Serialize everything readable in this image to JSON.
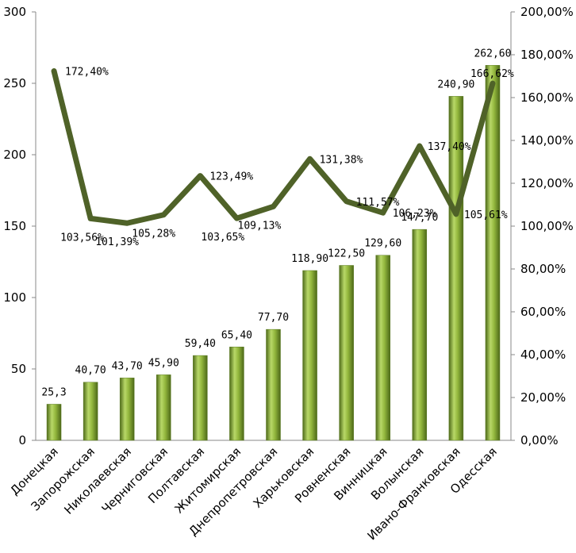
{
  "chart_data": {
    "type": "bar",
    "categories": [
      "Донецкая",
      "Запорожская",
      "Николаевская",
      "Черниговская",
      "Полтавская",
      "Житомирская",
      "Днепропетровская",
      "Харьковская",
      "Ровненская",
      "Винницкая",
      "Волынская",
      "Ивано-Франковская",
      "Одесская"
    ],
    "series": [
      {
        "type": "bar",
        "axis": "left",
        "values": [
          25.3,
          40.7,
          43.7,
          45.9,
          59.4,
          65.4,
          77.7,
          118.9,
          122.5,
          129.6,
          147.7,
          240.9,
          262.6
        ],
        "labels": [
          "25,3",
          "40,70",
          "43,70",
          "45,90",
          "59,40",
          "65,40",
          "77,70",
          "118,90",
          "122,50",
          "129,60",
          "147,70",
          "240,90",
          "262,60"
        ],
        "color": "#8fb339"
      },
      {
        "type": "line",
        "axis": "right",
        "values": [
          172.4,
          103.56,
          101.39,
          105.28,
          123.49,
          103.65,
          109.13,
          131.38,
          111.57,
          106.23,
          137.4,
          105.61,
          166.62
        ],
        "labels": [
          "172,40%",
          "103,56%",
          "101,39%",
          "105,28%",
          "123,49%",
          "103,65%",
          "109,13%",
          "131,38%",
          "111,57%",
          "106,23%",
          "137,40%",
          "105,61%",
          "166,62%"
        ],
        "color": "#4f6228"
      }
    ],
    "y_left": {
      "lim": [
        0,
        300
      ],
      "ticks": [
        0,
        50,
        100,
        150,
        200,
        250,
        300
      ],
      "tick_labels": [
        "0",
        "50",
        "100",
        "150",
        "200",
        "250",
        "300"
      ]
    },
    "y_right": {
      "lim": [
        0,
        200
      ],
      "ticks": [
        0,
        20,
        40,
        60,
        80,
        100,
        120,
        140,
        160,
        180,
        200
      ],
      "tick_labels": [
        "0,00%",
        "20,00%",
        "40,00%",
        "60,00%",
        "80,00%",
        "100,00%",
        "120,00%",
        "140,00%",
        "160,00%",
        "180,00%",
        "200,00%"
      ]
    },
    "grid": false,
    "legend": "none"
  }
}
